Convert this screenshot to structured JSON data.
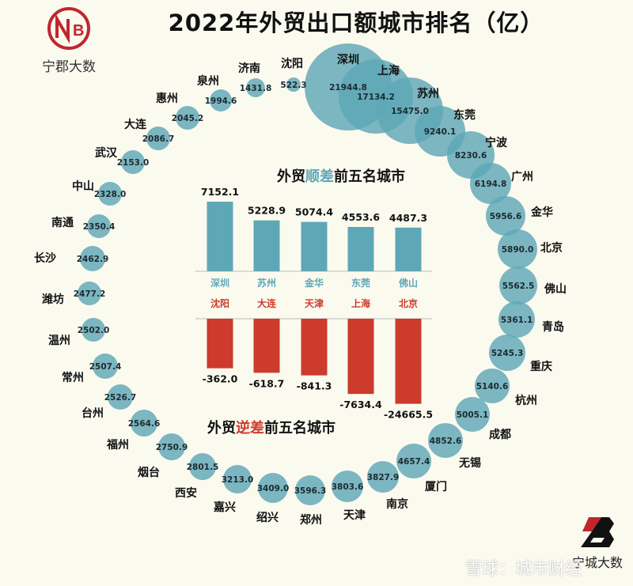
{
  "title": "2022年外贸出口额城市排名（亿）",
  "logo": {
    "letters": "NB",
    "text": "宁郡大数",
    "color": "#c0272d"
  },
  "brand": {
    "letter": "B",
    "text": "宁城大数"
  },
  "watermark": "雪球：城市财经",
  "colors": {
    "bubble": "#5ea7b7",
    "surplus": "#5ea7b7",
    "deficit": "#cc3b2b",
    "background": "#fbfaef"
  },
  "chart_data": [
    {
      "type": "bubble",
      "title": "2022年外贸出口额城市排名（亿）",
      "unit": "亿",
      "cities": [
        "沈阳",
        "深圳",
        "上海",
        "苏州",
        "东莞",
        "宁波",
        "广州",
        "金华",
        "北京",
        "佛山",
        "青岛",
        "重庆",
        "杭州",
        "成都",
        "无锡",
        "厦门",
        "南京",
        "天津",
        "郑州",
        "绍兴",
        "嘉兴",
        "西安",
        "烟台",
        "福州",
        "台州",
        "常州",
        "温州",
        "潍坊",
        "长沙",
        "南通",
        "中山",
        "武汉",
        "大连",
        "惠州",
        "泉州",
        "济南"
      ],
      "values": [
        "522.3",
        "21944.8",
        "17134.2",
        "15475.0",
        "9240.1",
        "8230.6",
        "6194.8",
        "5956.6",
        "5890.0",
        "5562.5",
        "5361.1",
        "5245.3",
        "5140.6",
        "5005.1",
        "4852.6",
        "4657.4",
        "3827.9",
        "3803.6",
        "3596.3",
        "3409.0",
        "3213.0",
        "2801.5",
        "2750.9",
        "2564.6",
        "2526.7",
        "2507.4",
        "2502.0",
        "2477.2",
        "2462.9",
        "2350.4",
        "2328.0",
        "2153.0",
        "2086.7",
        "2045.2",
        "1994.6",
        "1431.8"
      ]
    },
    {
      "type": "bar",
      "title": "外贸顺差前五名城市",
      "title_parts": [
        "外贸",
        "顺差",
        "前五名城市"
      ],
      "categories": [
        "深圳",
        "苏州",
        "金华",
        "东莞",
        "佛山"
      ],
      "values": [
        "7152.1",
        "5228.9",
        "5074.4",
        "4553.6",
        "4487.3"
      ]
    },
    {
      "type": "bar",
      "title": "外贸逆差前五名城市",
      "title_parts": [
        "外贸",
        "逆差",
        "前五名城市"
      ],
      "categories": [
        "沈阳",
        "大连",
        "天津",
        "上海",
        "北京"
      ],
      "values": [
        "-362.0",
        "-618.7",
        "-841.3",
        "-7634.4",
        "-24665.5"
      ]
    }
  ]
}
